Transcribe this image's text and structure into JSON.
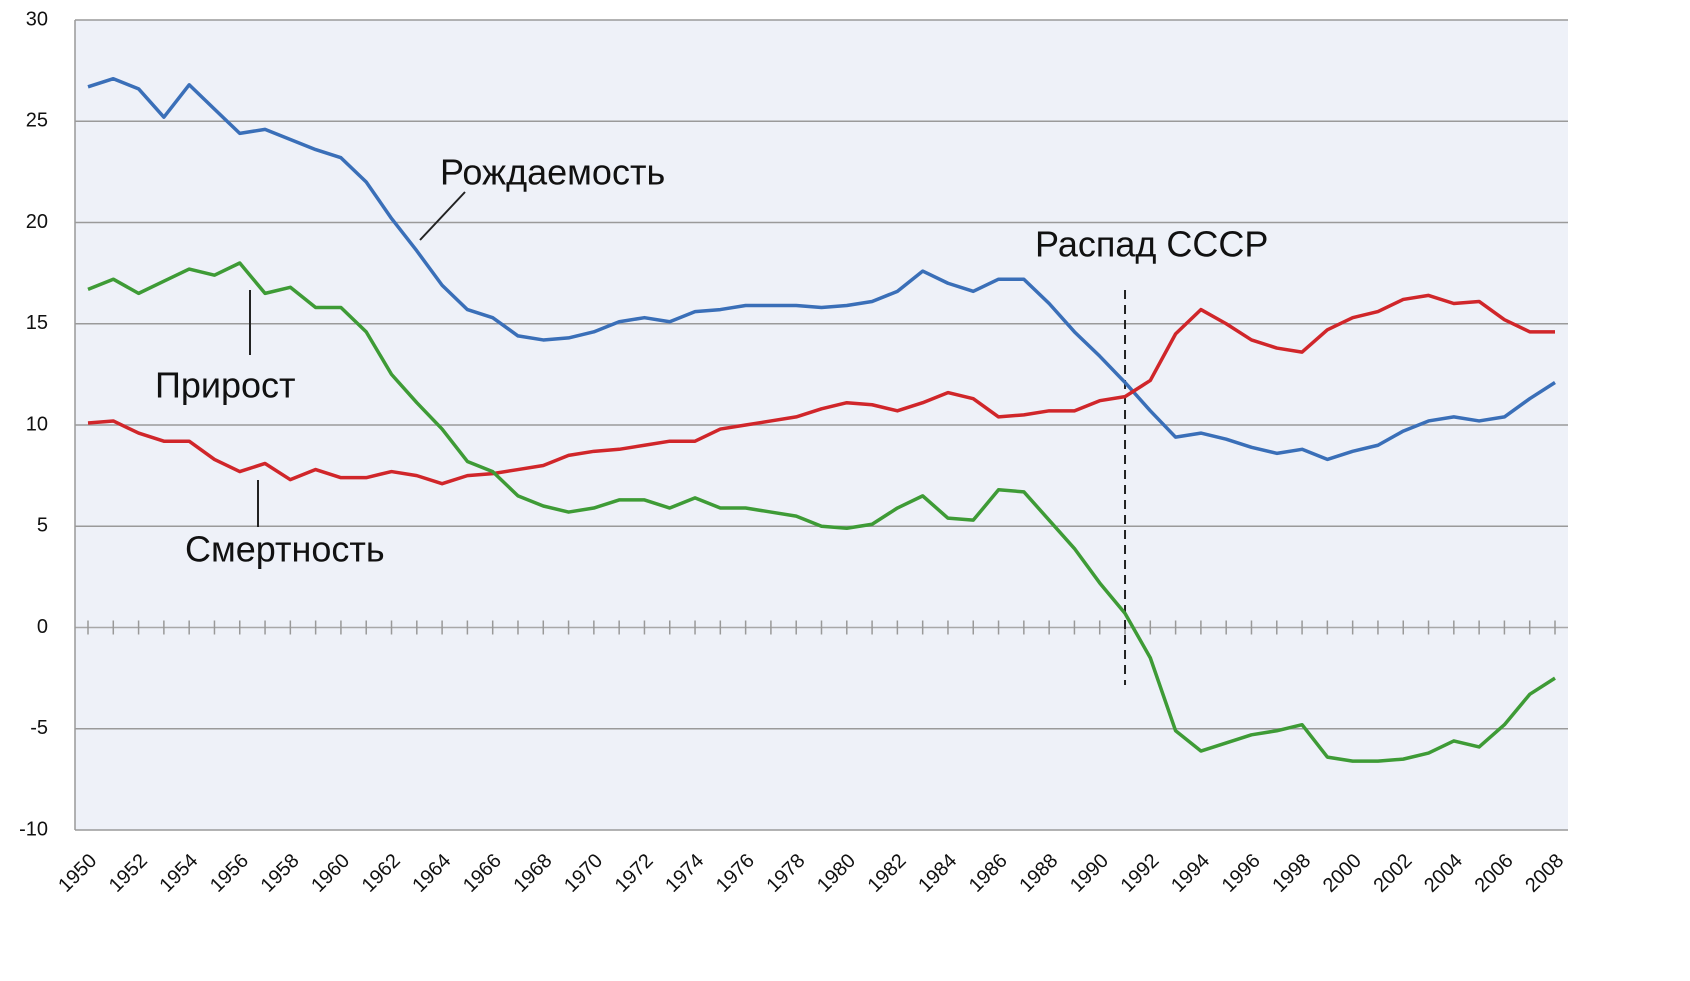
{
  "chart_data": {
    "type": "line",
    "x": [
      1950,
      1951,
      1952,
      1953,
      1954,
      1955,
      1956,
      1957,
      1958,
      1959,
      1960,
      1961,
      1962,
      1963,
      1964,
      1965,
      1966,
      1967,
      1968,
      1969,
      1970,
      1971,
      1972,
      1973,
      1974,
      1975,
      1976,
      1977,
      1978,
      1979,
      1980,
      1981,
      1982,
      1983,
      1984,
      1985,
      1986,
      1987,
      1988,
      1989,
      1990,
      1991,
      1992,
      1993,
      1994,
      1995,
      1996,
      1997,
      1998,
      1999,
      2000,
      2001,
      2002,
      2003,
      2004,
      2005,
      2006,
      2007,
      2008
    ],
    "series": [
      {
        "name": "Рождаемость",
        "color": "#3a6fb8",
        "values": [
          26.7,
          27.1,
          26.6,
          25.2,
          26.8,
          25.6,
          24.4,
          24.6,
          24.1,
          23.6,
          23.2,
          22.0,
          20.2,
          18.6,
          16.9,
          15.7,
          15.3,
          14.4,
          14.2,
          14.3,
          14.6,
          15.1,
          15.3,
          15.1,
          15.6,
          15.7,
          15.9,
          15.9,
          15.9,
          15.8,
          15.9,
          16.1,
          16.6,
          17.6,
          17.0,
          16.6,
          17.2,
          17.2,
          16.0,
          14.6,
          13.4,
          12.1,
          10.7,
          9.4,
          9.6,
          9.3,
          8.9,
          8.6,
          8.8,
          8.3,
          8.7,
          9.0,
          9.7,
          10.2,
          10.4,
          10.2,
          10.4,
          11.3,
          12.1
        ]
      },
      {
        "name": "Смертность",
        "color": "#d0262a",
        "values": [
          10.1,
          10.2,
          9.6,
          9.2,
          9.2,
          8.3,
          7.7,
          8.1,
          7.3,
          7.8,
          7.4,
          7.4,
          7.7,
          7.5,
          7.1,
          7.5,
          7.6,
          7.8,
          8.0,
          8.5,
          8.7,
          8.8,
          9.0,
          9.2,
          9.2,
          9.8,
          10.0,
          10.2,
          10.4,
          10.8,
          11.1,
          11.0,
          10.7,
          11.1,
          11.6,
          11.3,
          10.4,
          10.5,
          10.7,
          10.7,
          11.2,
          11.4,
          12.2,
          14.5,
          15.7,
          15.0,
          14.2,
          13.8,
          13.6,
          14.7,
          15.3,
          15.6,
          16.2,
          16.4,
          16.0,
          16.1,
          15.2,
          14.6,
          14.6
        ]
      },
      {
        "name": "Прирост",
        "color": "#3e9b36",
        "values": [
          16.7,
          17.2,
          16.5,
          17.1,
          17.7,
          17.4,
          18.0,
          16.5,
          16.8,
          15.8,
          15.8,
          14.6,
          12.5,
          11.1,
          9.8,
          8.2,
          7.7,
          6.5,
          6.0,
          5.7,
          5.9,
          6.3,
          6.3,
          5.9,
          6.4,
          5.9,
          5.9,
          5.7,
          5.5,
          5.0,
          4.9,
          5.1,
          5.9,
          6.5,
          5.4,
          5.3,
          6.8,
          6.7,
          5.3,
          3.9,
          2.2,
          0.7,
          -1.5,
          -5.1,
          -6.1,
          -5.7,
          -5.3,
          -5.1,
          -4.8,
          -6.4,
          -6.6,
          -6.6,
          -6.5,
          -6.2,
          -5.6,
          -5.9,
          -4.8,
          -3.3,
          -2.5
        ]
      }
    ],
    "event": {
      "label": "Распад СССР",
      "x": 1991
    },
    "xlim": [
      1950,
      2008
    ],
    "xticks": [
      1950,
      1952,
      1954,
      1956,
      1958,
      1960,
      1962,
      1964,
      1966,
      1968,
      1970,
      1972,
      1974,
      1976,
      1978,
      1980,
      1982,
      1984,
      1986,
      1988,
      1990,
      1992,
      1994,
      1996,
      1998,
      2000,
      2002,
      2004,
      2006,
      2008
    ],
    "ylim": [
      -10,
      30
    ],
    "yticks": [
      -10,
      -5,
      0,
      5,
      10,
      15,
      20,
      25,
      30
    ],
    "grid": true
  }
}
